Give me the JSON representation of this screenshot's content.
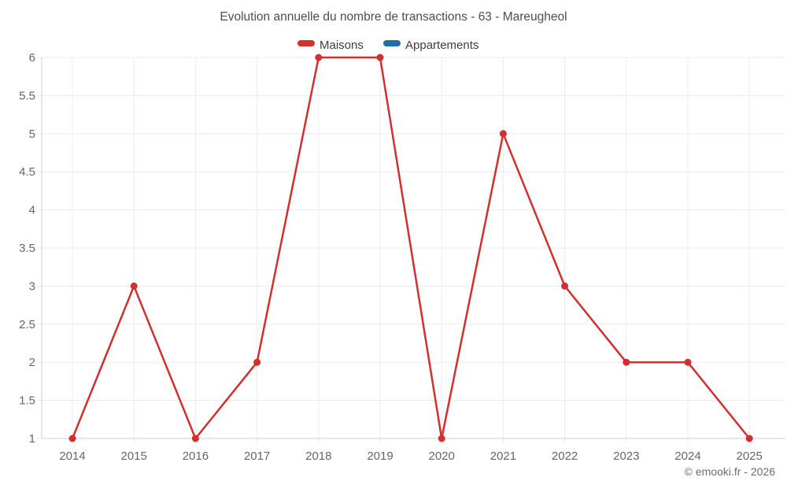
{
  "page": {
    "title": "Evolution annuelle du nombre de transactions - 63 - Mareugheol",
    "copyright": "© emooki.fr - 2026"
  },
  "colors": {
    "background": "#ffffff",
    "title_text": "#4d4d4d",
    "legend_text": "#3d3d3d",
    "axis_text": "#666666",
    "copyright_text": "#6b6b6b",
    "gridline": "#ececec",
    "axis_line": "#cfcfcf",
    "maisons_red": "#d32f2f",
    "appartements_blue": "#1d6fa5"
  },
  "chart_data": {
    "type": "line",
    "title": "Evolution annuelle du nombre de transactions - 63 - Mareugheol",
    "xlabel": "",
    "ylabel": "",
    "categories": [
      "2014",
      "2015",
      "2016",
      "2017",
      "2018",
      "2019",
      "2020",
      "2021",
      "2022",
      "2023",
      "2024",
      "2025"
    ],
    "series": [
      {
        "name": "Maisons",
        "color": "#d32f2f",
        "values": [
          1,
          3,
          1,
          2,
          6,
          6,
          1,
          5,
          3,
          2,
          2,
          1
        ]
      },
      {
        "name": "Appartements",
        "color": "#1d6fa5",
        "values": []
      }
    ],
    "ylim": [
      1,
      6
    ],
    "ytick_step": 0.5,
    "ytick_labels": [
      "1",
      "1.5",
      "2",
      "2.5",
      "3",
      "3.5",
      "4",
      "4.5",
      "5",
      "5.5",
      "6"
    ],
    "grid": true,
    "legend_position": "top",
    "point_style": "filled-circle",
    "annotations": []
  }
}
